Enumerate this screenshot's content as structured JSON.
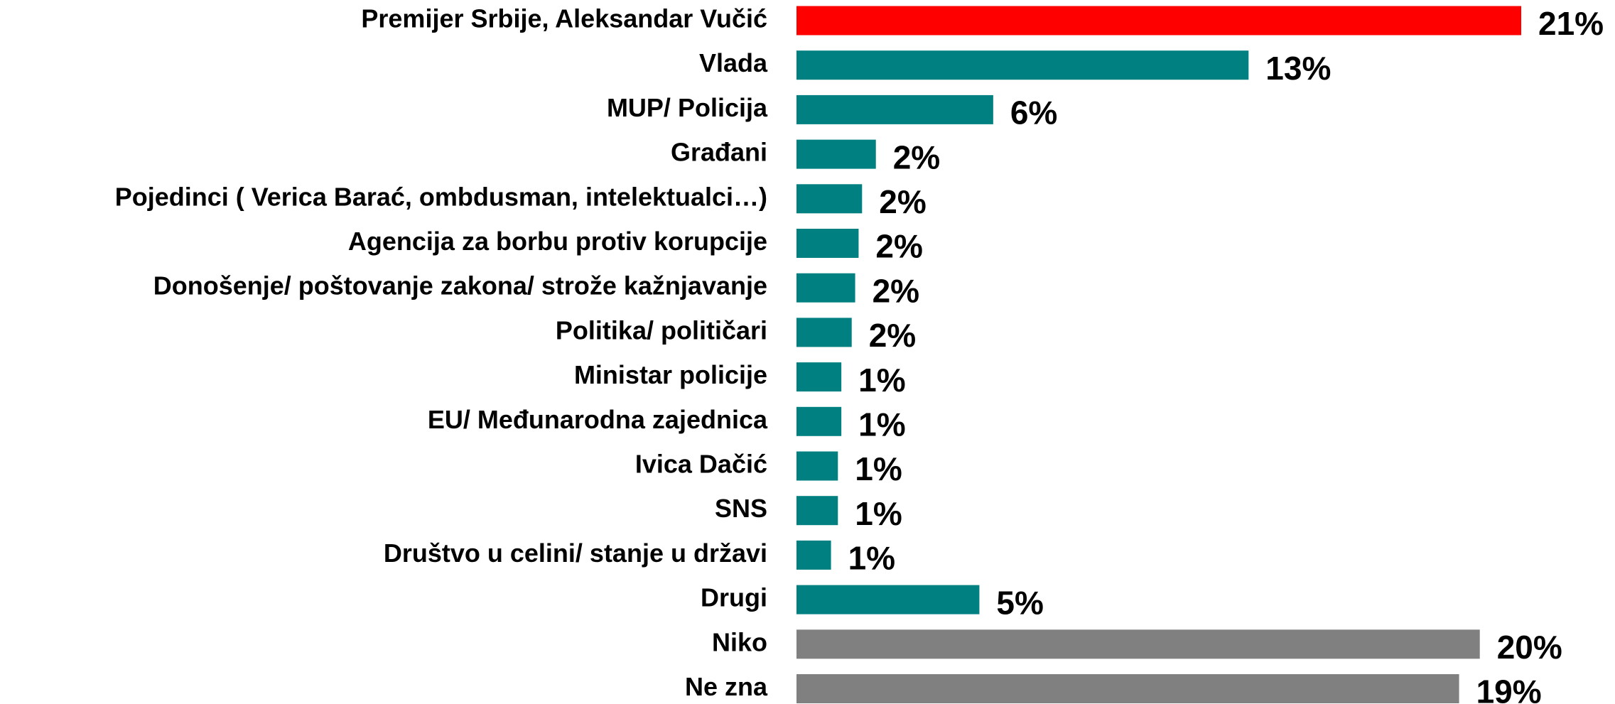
{
  "chart_data": {
    "type": "barh",
    "categories": [
      "Premijer Srbije, Aleksandar Vučić",
      "Vlada",
      "MUP/ Policija",
      "Građani",
      "Pojedinci ( Verica Barać, ombdusman, intelektualci…)",
      "Agencija za borbu protiv korupcije",
      "Donošenje/ poštovanje zakona/ strože kažnjavanje",
      "Politika/ političari",
      "Ministar policije",
      "EU/ Međunarodna zajednica",
      "Ivica Dačić",
      "SNS",
      "Društvo u celini/ stanje u državi",
      "Drugi",
      "Niko",
      "Ne zna"
    ],
    "values": [
      21,
      13.1,
      5.7,
      2.3,
      1.9,
      1.8,
      1.7,
      1.6,
      1.3,
      1.3,
      1.2,
      1.2,
      1.0,
      5.3,
      19.8,
      19.2
    ],
    "value_labels": [
      "21%",
      "13%",
      "6%",
      "2%",
      "2%",
      "2%",
      "2%",
      "2%",
      "1%",
      "1%",
      "1%",
      "1%",
      "1%",
      "5%",
      "20%",
      "19%"
    ],
    "colors": [
      "#ff0000",
      "#008080",
      "#008080",
      "#008080",
      "#008080",
      "#008080",
      "#008080",
      "#008080",
      "#008080",
      "#008080",
      "#008080",
      "#008080",
      "#008080",
      "#008080",
      "#808080",
      "#808080"
    ]
  }
}
